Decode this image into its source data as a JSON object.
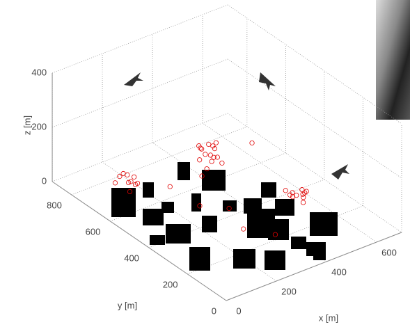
{
  "chart_data": {
    "type": "scatter3d",
    "xlabel": "x [m]",
    "ylabel": "y [m]",
    "zlabel": "z [m]",
    "xlim": [
      0,
      700
    ],
    "ylim": [
      0,
      900
    ],
    "zlim": [
      0,
      400
    ],
    "xticks": [
      0,
      200,
      400,
      600
    ],
    "yticks": [
      0,
      200,
      400,
      600,
      800
    ],
    "zticks": [
      0,
      200,
      400
    ],
    "grid": true,
    "series": [
      {
        "color": "#e00000",
        "x": [
          400,
          380,
          420,
          410,
          390,
          430,
          370,
          440,
          400,
          360,
          415,
          395,
          385,
          425,
          405,
          150,
          130,
          170,
          160,
          140,
          180,
          120,
          155,
          175,
          145,
          550,
          530,
          570,
          560,
          540,
          580,
          520,
          565,
          545,
          590,
          300,
          250,
          450,
          200,
          500,
          320,
          280,
          350
        ],
        "y": [
          600,
          620,
          590,
          640,
          570,
          610,
          580,
          630,
          660,
          600,
          560,
          650,
          590,
          620,
          600,
          700,
          720,
          690,
          740,
          680,
          710,
          730,
          660,
          720,
          700,
          350,
          380,
          340,
          320,
          370,
          360,
          330,
          390,
          310,
          350,
          300,
          450,
          450,
          550,
          250,
          400,
          500,
          200
        ],
        "z": [
          100,
          120,
          90,
          80,
          110,
          130,
          70,
          95,
          105,
          140,
          85,
          60,
          150,
          115,
          75,
          40,
          60,
          30,
          50,
          20,
          45,
          35,
          55,
          25,
          70,
          20,
          30,
          10,
          40,
          15,
          25,
          35,
          5,
          45,
          20,
          10,
          150,
          200,
          80,
          60,
          30,
          5,
          20
        ]
      }
    ]
  }
}
